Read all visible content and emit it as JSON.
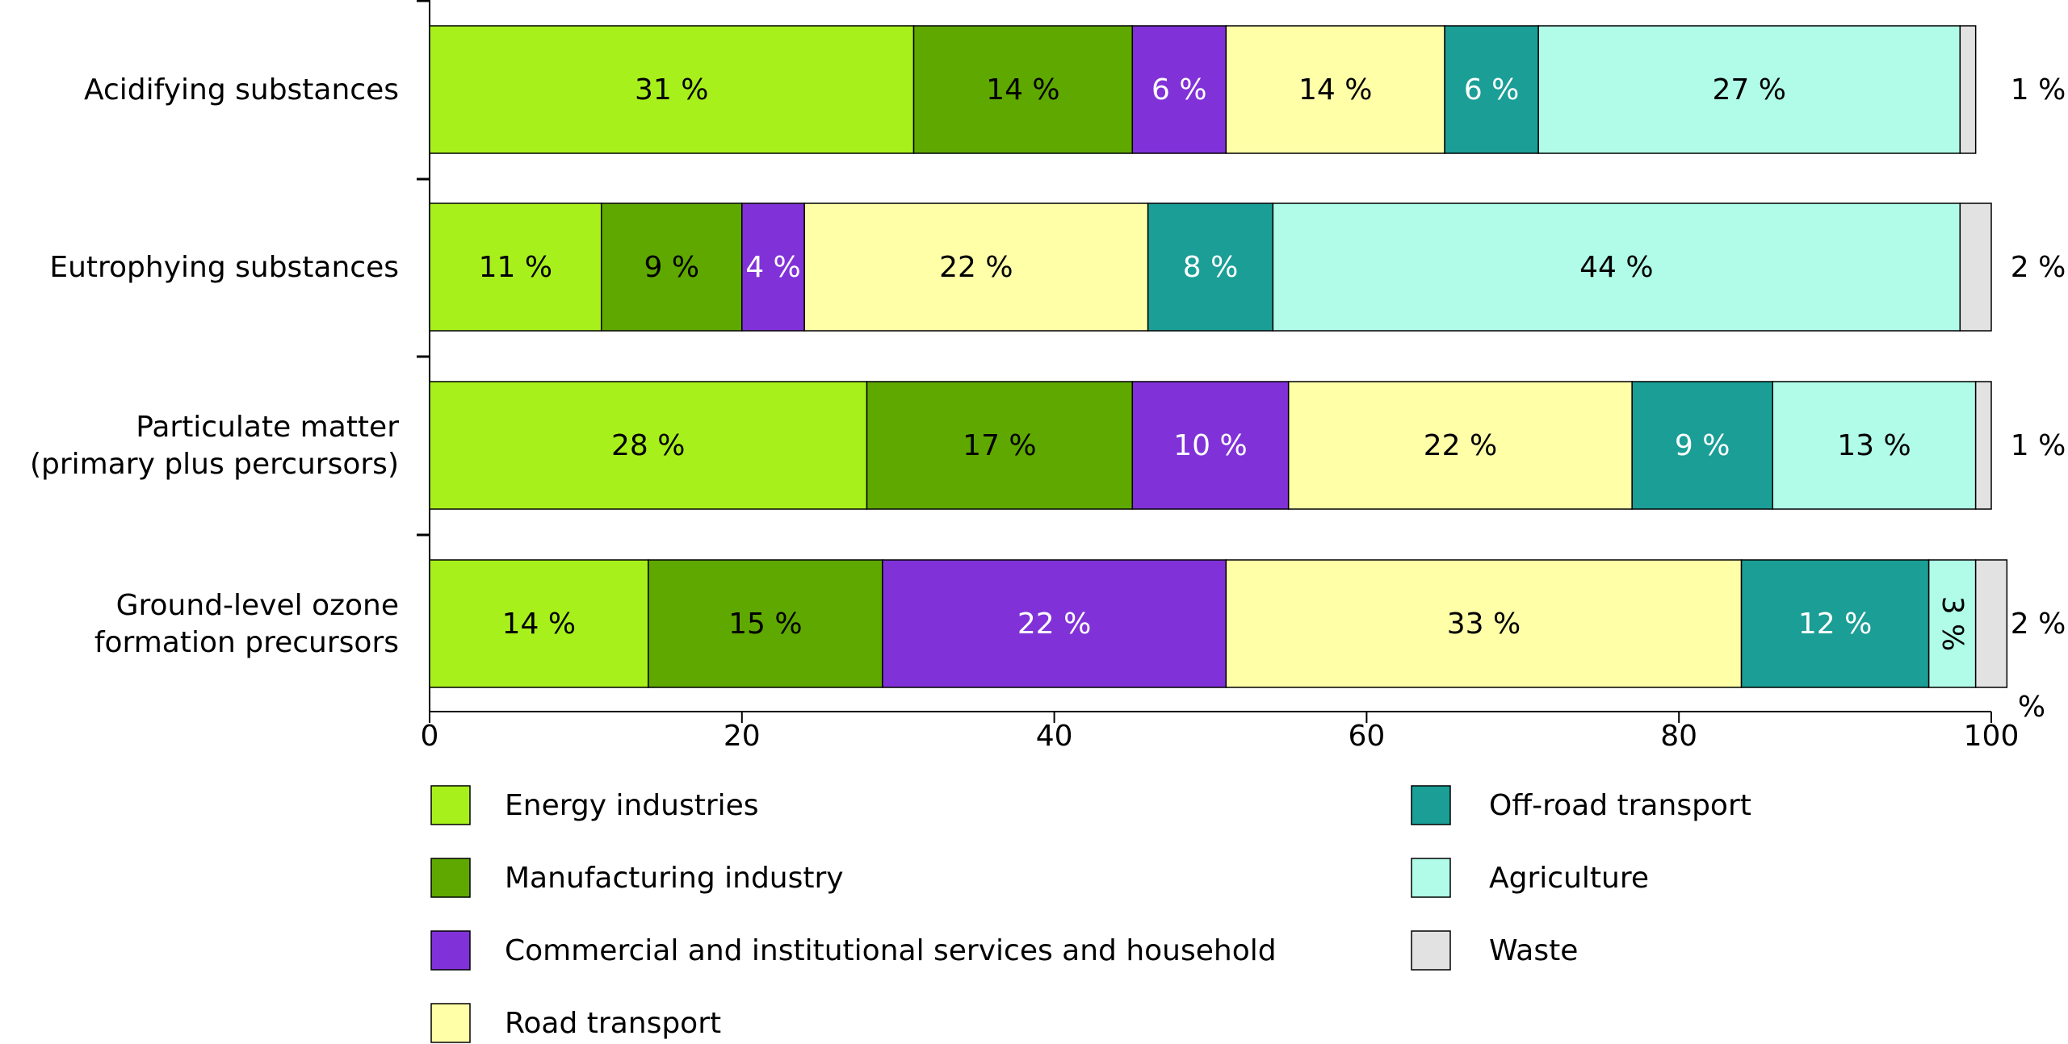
{
  "chart_data": {
    "type": "bar",
    "orientation": "horizontal",
    "stacked": true,
    "categories": [
      [
        "Acidifying substances"
      ],
      [
        "Eutrophying substances"
      ],
      [
        "Particulate matter",
        "(primary plus percursors)"
      ],
      [
        "Ground-level ozone",
        "formation precursors"
      ]
    ],
    "series": [
      {
        "name": "Energy industries",
        "color": "#a8f01c",
        "label_color": "#000000",
        "values": [
          31,
          11,
          28,
          14
        ],
        "labels": [
          "31 %",
          "11 %",
          "28 %",
          "14 %"
        ]
      },
      {
        "name": "Manufacturing industry",
        "color": "#5ea800",
        "label_color": "#000000",
        "values": [
          14,
          9,
          17,
          15
        ],
        "labels": [
          "14 %",
          "9 %",
          "17 %",
          "15 %"
        ]
      },
      {
        "name": "Commercial and institutional services and household",
        "color": "#8032d8",
        "label_color": "#ffffff",
        "values": [
          6,
          4,
          10,
          22
        ],
        "labels": [
          "6 %",
          "4 %",
          "10 %",
          "22 %"
        ]
      },
      {
        "name": "Road transport",
        "color": "#ffffa8",
        "label_color": "#000000",
        "values": [
          14,
          22,
          22,
          33
        ],
        "labels": [
          "14 %",
          "22 %",
          "22 %",
          "33 %"
        ]
      },
      {
        "name": "Off-road transport",
        "color": "#1a9e96",
        "label_color": "#ffffff",
        "values": [
          6,
          8,
          9,
          12
        ],
        "labels": [
          "6 %",
          "8 %",
          "9 %",
          "12 %"
        ]
      },
      {
        "name": "Agriculture",
        "color": "#b0fce8",
        "label_color": "#000000",
        "values": [
          27,
          44,
          13,
          3
        ],
        "labels": [
          "27 %",
          "44 %",
          "13 %",
          "3 %"
        ]
      },
      {
        "name": "Waste",
        "color": "#e2e2e2",
        "label_color": "#000000",
        "values": [
          1,
          2,
          1,
          2
        ],
        "labels": [
          "1 %",
          "2 %",
          "1 %",
          "2 %"
        ]
      }
    ],
    "xaxis": {
      "ticks": [
        "0",
        "20",
        "40",
        "60",
        "80",
        "100"
      ],
      "unit": "%",
      "range": [
        0,
        100
      ]
    },
    "legend": {
      "position": "bottom",
      "columns": 2
    },
    "grid": false
  }
}
